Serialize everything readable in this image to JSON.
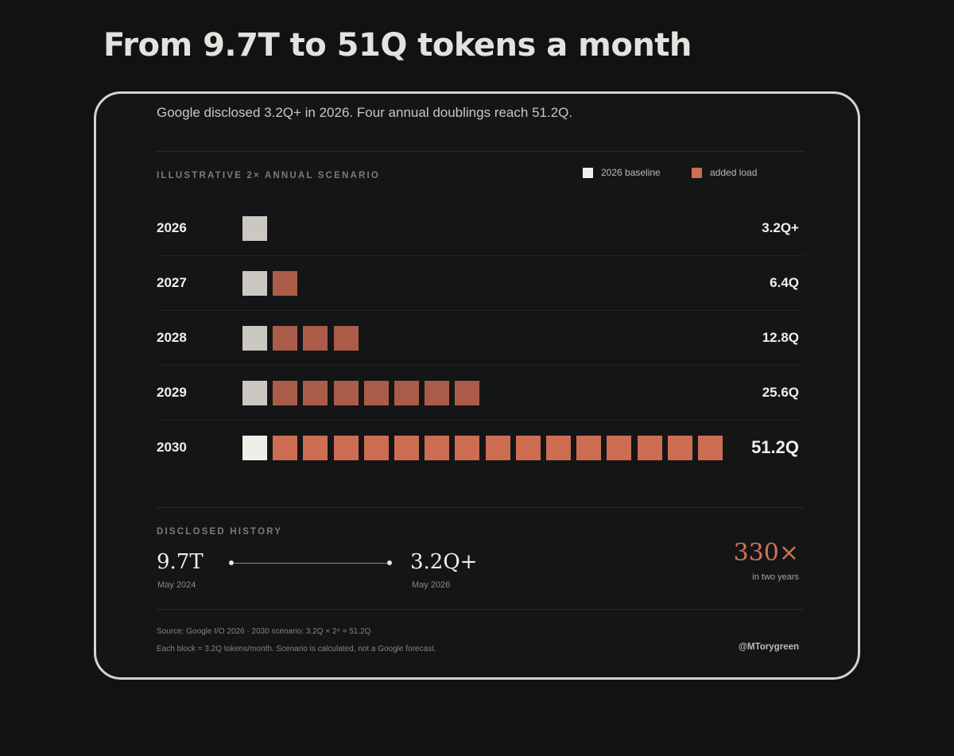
{
  "headline": "From 9.7T to 51Q tokens a month",
  "subtitle": "Google disclosed 3.2Q+ in 2026. Four annual doublings reach 51.2Q.",
  "scenario_label": "ILLUSTRATIVE 2× ANNUAL SCENARIO",
  "legend": {
    "baseline": "2026 baseline",
    "added": "added load"
  },
  "colors": {
    "baseline_dim": "#cbc8c2",
    "baseline_bright": "#f1eee7",
    "added_dim": "#ab5c48",
    "added_bright": "#cd6d52",
    "accent": "#cf7352"
  },
  "chart_data": {
    "type": "bar",
    "unit": "Each block = 3.2Q tokens/month",
    "categories": [
      "2026",
      "2027",
      "2028",
      "2029",
      "2030"
    ],
    "series": [
      {
        "name": "2026 baseline",
        "values": [
          1,
          1,
          1,
          1,
          1
        ]
      },
      {
        "name": "added load",
        "values": [
          0,
          1,
          3,
          7,
          15
        ]
      }
    ],
    "value_labels": [
      "3.2Q+",
      "6.4Q",
      "12.8Q",
      "25.6Q",
      "51.2Q"
    ]
  },
  "history": {
    "label": "DISCLOSED HISTORY",
    "start_value": "9.7T",
    "start_date": "May 2024",
    "end_value": "3.2Q+",
    "end_date": "May 2026",
    "multiplier": "330×",
    "multiplier_caption": "in two years"
  },
  "footer": {
    "source": "Source: Google I/O 2026 · 2030 scenario: 3.2Q × 2⁴ = 51.2Q",
    "note": "Each block = 3.2Q tokens/month. Scenario is calculated, not a Google forecast.",
    "handle": "@MTorygreen"
  }
}
